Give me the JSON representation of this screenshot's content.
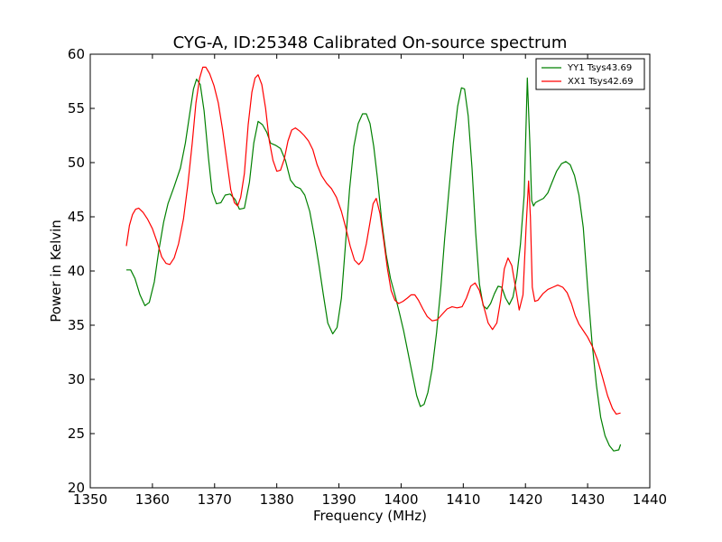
{
  "chart_data": {
    "type": "line",
    "title": "CYG-A, ID:25348 Calibrated On-source spectrum",
    "xlabel": "Frequency (MHz)",
    "ylabel": "Power in Kelvin",
    "xlim": [
      1350,
      1440
    ],
    "ylim": [
      20,
      60
    ],
    "xticks": [
      1350,
      1360,
      1370,
      1380,
      1390,
      1400,
      1410,
      1420,
      1430,
      1440
    ],
    "yticks": [
      20,
      25,
      30,
      35,
      40,
      45,
      50,
      55,
      60
    ],
    "grid": false,
    "legend_position": "top-right",
    "series": [
      {
        "name": "YY1 Tsys43.69",
        "color": "#008000",
        "x": [
          1355.8,
          1356.5,
          1357.2,
          1358,
          1358.8,
          1359.5,
          1360.3,
          1361,
          1361.8,
          1362.5,
          1363.5,
          1364.5,
          1365.3,
          1366,
          1366.6,
          1367.1,
          1367.7,
          1368.3,
          1369,
          1369.6,
          1370.3,
          1371,
          1371.7,
          1372.5,
          1373.3,
          1374,
          1374.8,
          1375.6,
          1376.3,
          1377,
          1377.7,
          1378.4,
          1379,
          1379.8,
          1380.6,
          1381.4,
          1382.2,
          1383,
          1383.8,
          1384.5,
          1385.3,
          1386.1,
          1386.8,
          1387.5,
          1388.2,
          1389,
          1389.7,
          1390.4,
          1391,
          1391.7,
          1392.4,
          1393.1,
          1393.8,
          1394.4,
          1395,
          1395.6,
          1396.2,
          1396.9,
          1397.6,
          1398.3,
          1399,
          1399.7,
          1400.4,
          1401.1,
          1401.8,
          1402.5,
          1403.1,
          1403.7,
          1404.3,
          1405,
          1405.7,
          1406.4,
          1407,
          1407.7,
          1408.4,
          1409.1,
          1409.7,
          1410.2,
          1410.8,
          1411.4,
          1412,
          1412.6,
          1413.2,
          1413.8,
          1414.4,
          1415,
          1415.6,
          1416.2,
          1416.8,
          1417.4,
          1418,
          1418.6,
          1419.2,
          1419.8,
          1420.3,
          1420.7,
          1421,
          1421.3,
          1421.6,
          1422.2,
          1422.9,
          1423.6,
          1424.3,
          1425,
          1425.8,
          1426.5,
          1427.2,
          1427.9,
          1428.6,
          1429.3,
          1430,
          1430.7,
          1431.4,
          1432.1,
          1432.8,
          1433.5,
          1434.2,
          1435,
          1435.3
        ],
        "y": [
          40.1,
          40.1,
          39.3,
          37.8,
          36.8,
          37.1,
          39,
          41.8,
          44.5,
          46.2,
          47.8,
          49.5,
          51.8,
          54.5,
          56.8,
          57.7,
          57.2,
          54.8,
          50.5,
          47.3,
          46.2,
          46.3,
          47,
          47.1,
          46.6,
          45.7,
          45.8,
          48.2,
          51.8,
          53.8,
          53.5,
          52.8,
          51.8,
          51.6,
          51.3,
          50.2,
          48.4,
          47.8,
          47.6,
          47,
          45.5,
          43,
          40.5,
          37.8,
          35.2,
          34.2,
          34.8,
          37.5,
          42,
          47.5,
          51.5,
          53.6,
          54.5,
          54.5,
          53.6,
          51.5,
          48.5,
          44.5,
          41.5,
          39.3,
          37.8,
          36.2,
          34.5,
          32.5,
          30.5,
          28.5,
          27.5,
          27.7,
          28.8,
          31,
          34.3,
          38.5,
          43,
          47.5,
          51.8,
          55.2,
          56.9,
          56.8,
          54.3,
          49.5,
          43.5,
          38.8,
          36.8,
          36.5,
          37,
          37.9,
          38.6,
          38.5,
          37.5,
          36.9,
          37.6,
          39.5,
          42.5,
          47,
          57.8,
          52,
          46.5,
          46,
          46.3,
          46.5,
          46.7,
          47.2,
          48.2,
          49.2,
          49.9,
          50.1,
          49.8,
          48.8,
          47,
          44,
          38.5,
          33.5,
          29.5,
          26.5,
          24.8,
          23.9,
          23.4,
          23.5,
          24.0
        ]
      },
      {
        "name": "XX1 Tsys42.69",
        "color": "#ff0000",
        "x": [
          1355.8,
          1356.3,
          1356.8,
          1357.3,
          1357.8,
          1358.5,
          1359.2,
          1360,
          1360.8,
          1361.5,
          1362.2,
          1362.8,
          1363.5,
          1364.2,
          1365,
          1365.7,
          1366.4,
          1367,
          1367.6,
          1368.1,
          1368.6,
          1369.2,
          1369.9,
          1370.6,
          1371.3,
          1372,
          1372.6,
          1373.2,
          1373.7,
          1374.2,
          1374.8,
          1375.4,
          1376,
          1376.5,
          1377,
          1377.6,
          1378.2,
          1378.8,
          1379.4,
          1380,
          1380.6,
          1381.2,
          1381.8,
          1382.4,
          1383,
          1383.7,
          1384.4,
          1385.1,
          1385.8,
          1386.5,
          1387.2,
          1388,
          1388.8,
          1389.6,
          1390.4,
          1391.1,
          1391.8,
          1392.5,
          1393.2,
          1393.8,
          1394.4,
          1395,
          1395.5,
          1396,
          1396.6,
          1397.2,
          1397.8,
          1398.4,
          1399,
          1399.6,
          1400.3,
          1401,
          1401.6,
          1402.2,
          1402.8,
          1403.5,
          1404.2,
          1405,
          1405.8,
          1406.6,
          1407.4,
          1408.2,
          1409,
          1409.8,
          1410.5,
          1411.2,
          1411.9,
          1412.6,
          1413.3,
          1414,
          1414.7,
          1415.4,
          1416,
          1416.6,
          1417.2,
          1417.8,
          1418.4,
          1419,
          1419.6,
          1420.1,
          1420.5,
          1420.8,
          1421.1,
          1421.5,
          1422,
          1422.8,
          1423.6,
          1424.4,
          1425.2,
          1426,
          1426.7,
          1427.4,
          1428,
          1428.6,
          1429.3,
          1430,
          1430.8,
          1431.6,
          1432.4,
          1433.2,
          1434,
          1434.6,
          1435.3
        ],
        "y": [
          42.3,
          44.2,
          45.2,
          45.7,
          45.8,
          45.4,
          44.8,
          43.9,
          42.6,
          41.3,
          40.7,
          40.6,
          41.2,
          42.5,
          44.8,
          48,
          51.8,
          55.5,
          57.8,
          58.8,
          58.8,
          58.2,
          57.1,
          55.5,
          53,
          50,
          47.5,
          46.3,
          46,
          46.8,
          49,
          53.5,
          56.5,
          57.8,
          58.1,
          57.2,
          55,
          52,
          50.2,
          49.2,
          49.3,
          50.3,
          52,
          53,
          53.2,
          52.9,
          52.5,
          52,
          51.2,
          49.8,
          48.8,
          48.1,
          47.6,
          46.8,
          45.5,
          44,
          42.3,
          41,
          40.6,
          41,
          42.5,
          44.5,
          46.2,
          46.7,
          45.3,
          42.8,
          40.2,
          38.2,
          37.3,
          37,
          37.2,
          37.5,
          37.8,
          37.8,
          37.3,
          36.5,
          35.8,
          35.4,
          35.5,
          36,
          36.5,
          36.7,
          36.6,
          36.7,
          37.5,
          38.6,
          38.9,
          38.2,
          36.7,
          35.2,
          34.6,
          35.2,
          37.3,
          40.2,
          41.2,
          40.5,
          38.5,
          36.4,
          37.8,
          44,
          48.3,
          45,
          38.5,
          37.2,
          37.3,
          37.9,
          38.3,
          38.5,
          38.7,
          38.5,
          38,
          37,
          35.9,
          35.1,
          34.5,
          33.9,
          33,
          31.8,
          30.2,
          28.5,
          27.3,
          26.8,
          26.9
        ]
      }
    ]
  }
}
